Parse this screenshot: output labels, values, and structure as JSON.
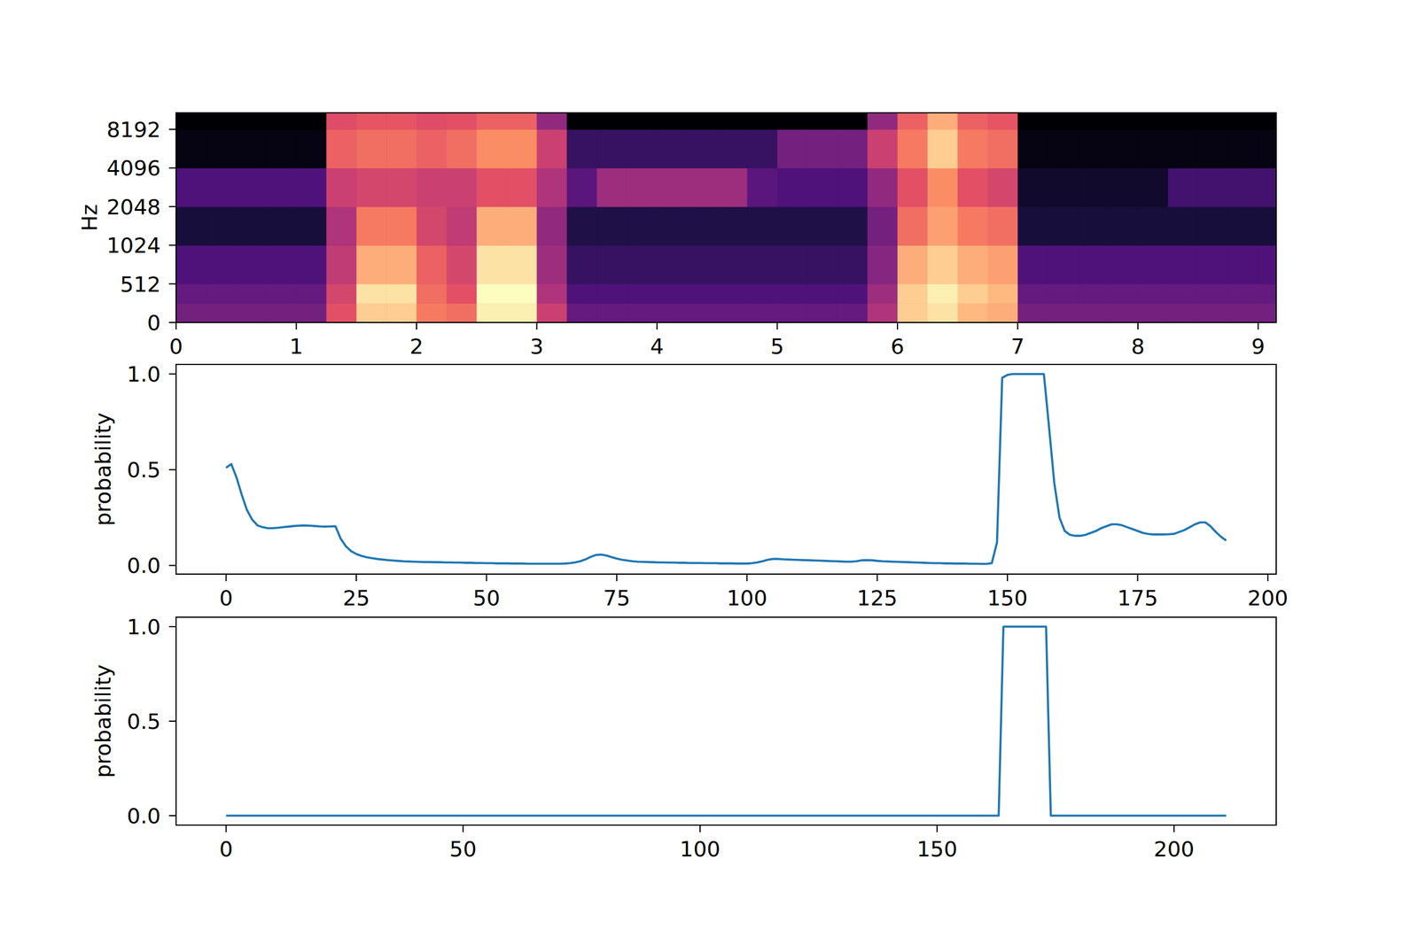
{
  "chart_data": [
    {
      "type": "heatmap",
      "ylabel": "Hz",
      "log": "y",
      "xlim": [
        0,
        9.15
      ],
      "xticks": [
        0,
        1,
        2,
        3,
        4,
        5,
        6,
        7,
        8,
        9
      ],
      "ylim": [
        0,
        11025
      ],
      "yticks": [
        0,
        512,
        1024,
        2048,
        4096,
        8192
      ],
      "time_edges": [
        0,
        0.25,
        0.5,
        0.75,
        1,
        1.25,
        1.5,
        1.75,
        2,
        2.25,
        2.5,
        2.75,
        3,
        3.25,
        3.5,
        3.75,
        4,
        4.25,
        4.5,
        4.75,
        5,
        5.25,
        5.5,
        5.75,
        6,
        6.25,
        6.5,
        6.75,
        7,
        7.25,
        7.5,
        7.75,
        8,
        8.25,
        8.5,
        8.75,
        9,
        9.25
      ],
      "freq_edges": [
        0,
        256,
        512,
        1024,
        2048,
        4096,
        8192,
        11025
      ],
      "cells": [
        [
          -55,
          -55,
          -55,
          -55,
          -55,
          -35,
          -15,
          -15,
          -28,
          -30,
          -10,
          -10,
          -40,
          -58,
          -58,
          -58,
          -58,
          -58,
          -58,
          -58,
          -58,
          -58,
          -58,
          -45,
          -15,
          -12,
          -18,
          -20,
          -55,
          -55,
          -55,
          -55,
          -55,
          -55,
          -55,
          -55,
          -55
        ],
        [
          -58,
          -58,
          -58,
          -58,
          -58,
          -38,
          -12,
          -12,
          -30,
          -35,
          -8,
          -8,
          -45,
          -62,
          -62,
          -62,
          -62,
          -62,
          -62,
          -62,
          -62,
          -62,
          -62,
          -48,
          -15,
          -10,
          -15,
          -18,
          -58,
          -58,
          -58,
          -58,
          -58,
          -58,
          -58,
          -58,
          -58
        ],
        [
          -62,
          -62,
          -62,
          -62,
          -62,
          -42,
          -20,
          -20,
          -32,
          -38,
          -12,
          -12,
          -48,
          -66,
          -66,
          -66,
          -66,
          -66,
          -66,
          -66,
          -66,
          -66,
          -66,
          -52,
          -20,
          -15,
          -20,
          -22,
          -62,
          -62,
          -62,
          -62,
          -62,
          -62,
          -62,
          -62,
          -62
        ],
        [
          -72,
          -72,
          -72,
          -72,
          -72,
          -45,
          -28,
          -28,
          -38,
          -42,
          -20,
          -20,
          -50,
          -70,
          -70,
          -70,
          -70,
          -70,
          -70,
          -70,
          -70,
          -70,
          -70,
          -55,
          -30,
          -22,
          -28,
          -30,
          -72,
          -72,
          -72,
          -72,
          -72,
          -72,
          -72,
          -72,
          -72
        ],
        [
          -62,
          -62,
          -62,
          -62,
          -62,
          -40,
          -38,
          -38,
          -40,
          -40,
          -35,
          -35,
          -45,
          -60,
          -48,
          -48,
          -48,
          -48,
          -48,
          -60,
          -62,
          -62,
          -62,
          -50,
          -35,
          -25,
          -35,
          -38,
          -74,
          -74,
          -74,
          -74,
          -74,
          -64,
          -64,
          -64,
          -64
        ],
        [
          -78,
          -78,
          -78,
          -78,
          -78,
          -32,
          -30,
          -30,
          -32,
          -30,
          -25,
          -25,
          -40,
          -66,
          -66,
          -66,
          -66,
          -66,
          -66,
          -66,
          -55,
          -55,
          -55,
          -40,
          -28,
          -15,
          -28,
          -30,
          -78,
          -78,
          -78,
          -78,
          -78,
          -78,
          -78,
          -78,
          -78
        ],
        [
          -80,
          -80,
          -80,
          -80,
          -80,
          -36,
          -34,
          -34,
          -36,
          -35,
          -32,
          -32,
          -50,
          -80,
          -80,
          -80,
          -80,
          -80,
          -80,
          -80,
          -80,
          -80,
          -80,
          -50,
          -32,
          -20,
          -32,
          -34,
          -80,
          -80,
          -80,
          -80,
          -80,
          -80,
          -80,
          -80,
          -80
        ]
      ]
    },
    {
      "type": "line",
      "ylabel": "probability",
      "color": "#1f77b4",
      "xlim": [
        -9.6,
        201.6
      ],
      "xticks": [
        0,
        25,
        50,
        75,
        100,
        125,
        150,
        175,
        200
      ],
      "ylim": [
        -0.045,
        1.05
      ],
      "yticks": [
        {
          "value": 0,
          "label": "0.0"
        },
        0.5,
        {
          "value": 1,
          "label": "1.0"
        }
      ],
      "x": [
        0,
        1,
        2,
        3,
        4,
        5,
        6,
        7,
        8,
        9,
        10,
        11,
        12,
        13,
        14,
        15,
        16,
        17,
        18,
        19,
        20,
        21,
        22,
        23,
        24,
        25,
        26,
        27,
        28,
        29,
        30,
        31,
        32,
        33,
        34,
        35,
        36,
        37,
        38,
        39,
        40,
        41,
        42,
        43,
        44,
        45,
        46,
        47,
        48,
        49,
        50,
        51,
        52,
        53,
        54,
        55,
        56,
        57,
        58,
        59,
        60,
        61,
        62,
        63,
        64,
        65,
        66,
        67,
        68,
        69,
        70,
        71,
        72,
        73,
        74,
        75,
        76,
        77,
        78,
        79,
        80,
        81,
        82,
        83,
        84,
        85,
        86,
        87,
        88,
        89,
        90,
        91,
        92,
        93,
        94,
        95,
        96,
        97,
        98,
        99,
        100,
        101,
        102,
        103,
        104,
        105,
        106,
        107,
        108,
        109,
        110,
        111,
        112,
        113,
        114,
        115,
        116,
        117,
        118,
        119,
        120,
        121,
        122,
        123,
        124,
        125,
        126,
        127,
        128,
        129,
        130,
        131,
        132,
        133,
        134,
        135,
        136,
        137,
        138,
        139,
        140,
        141,
        142,
        143,
        144,
        145,
        146,
        147,
        148,
        149,
        150,
        151,
        152,
        153,
        154,
        155,
        156,
        157,
        158,
        159,
        160,
        161,
        162,
        163,
        164,
        165,
        166,
        167,
        168,
        169,
        170,
        171,
        172,
        173,
        174,
        175,
        176,
        177,
        178,
        179,
        180,
        181,
        182,
        183,
        184,
        185,
        186,
        187,
        188,
        189,
        190,
        191,
        192
      ],
      "values": [
        0.51,
        0.53,
        0.46,
        0.37,
        0.29,
        0.24,
        0.21,
        0.2,
        0.195,
        0.195,
        0.197,
        0.2,
        0.203,
        0.206,
        0.208,
        0.209,
        0.208,
        0.206,
        0.204,
        0.203,
        0.204,
        0.205,
        0.14,
        0.1,
        0.075,
        0.06,
        0.05,
        0.043,
        0.038,
        0.034,
        0.031,
        0.028,
        0.026,
        0.024,
        0.022,
        0.021,
        0.02,
        0.019,
        0.018,
        0.018,
        0.017,
        0.017,
        0.016,
        0.016,
        0.015,
        0.015,
        0.014,
        0.014,
        0.013,
        0.013,
        0.012,
        0.012,
        0.011,
        0.011,
        0.011,
        0.01,
        0.01,
        0.01,
        0.009,
        0.009,
        0.009,
        0.009,
        0.009,
        0.009,
        0.009,
        0.01,
        0.012,
        0.016,
        0.022,
        0.032,
        0.045,
        0.055,
        0.057,
        0.052,
        0.044,
        0.036,
        0.03,
        0.026,
        0.022,
        0.02,
        0.019,
        0.018,
        0.017,
        0.016,
        0.016,
        0.015,
        0.015,
        0.014,
        0.014,
        0.013,
        0.013,
        0.013,
        0.012,
        0.012,
        0.012,
        0.011,
        0.011,
        0.011,
        0.01,
        0.01,
        0.01,
        0.012,
        0.016,
        0.022,
        0.03,
        0.034,
        0.034,
        0.032,
        0.031,
        0.03,
        0.029,
        0.028,
        0.027,
        0.026,
        0.025,
        0.024,
        0.023,
        0.022,
        0.021,
        0.02,
        0.02,
        0.022,
        0.027,
        0.028,
        0.027,
        0.024,
        0.022,
        0.021,
        0.02,
        0.019,
        0.018,
        0.017,
        0.016,
        0.015,
        0.014,
        0.013,
        0.012,
        0.012,
        0.011,
        0.011,
        0.01,
        0.01,
        0.01,
        0.009,
        0.009,
        0.008,
        0.008,
        0.012,
        0.12,
        0.98,
        0.995,
        1,
        1,
        1,
        1,
        1,
        1,
        1,
        0.72,
        0.43,
        0.25,
        0.18,
        0.16,
        0.155,
        0.155,
        0.16,
        0.17,
        0.18,
        0.195,
        0.205,
        0.215,
        0.215,
        0.21,
        0.2,
        0.19,
        0.18,
        0.17,
        0.165,
        0.162,
        0.162,
        0.162,
        0.163,
        0.165,
        0.175,
        0.185,
        0.2,
        0.215,
        0.225,
        0.225,
        0.205,
        0.175,
        0.15,
        0.13
      ]
    },
    {
      "type": "line",
      "ylabel": "probability",
      "color": "#1f77b4",
      "xlim": [
        -10.55,
        221.55
      ],
      "xticks": [
        0,
        50,
        100,
        150,
        200
      ],
      "ylim": [
        -0.05,
        1.05
      ],
      "yticks": [
        {
          "value": 0,
          "label": "0.0"
        },
        0.5,
        {
          "value": 1,
          "label": "1.0"
        }
      ],
      "x": [
        0,
        1,
        2,
        3,
        4,
        5,
        6,
        7,
        8,
        9,
        10,
        11,
        12,
        13,
        14,
        15,
        16,
        17,
        18,
        19,
        20,
        21,
        22,
        23,
        24,
        25,
        26,
        27,
        28,
        29,
        30,
        31,
        32,
        33,
        34,
        35,
        36,
        37,
        38,
        39,
        40,
        41,
        42,
        43,
        44,
        45,
        46,
        47,
        48,
        49,
        50,
        51,
        52,
        53,
        54,
        55,
        56,
        57,
        58,
        59,
        60,
        61,
        62,
        63,
        64,
        65,
        66,
        67,
        68,
        69,
        70,
        71,
        72,
        73,
        74,
        75,
        76,
        77,
        78,
        79,
        80,
        81,
        82,
        83,
        84,
        85,
        86,
        87,
        88,
        89,
        90,
        91,
        92,
        93,
        94,
        95,
        96,
        97,
        98,
        99,
        100,
        101,
        102,
        103,
        104,
        105,
        106,
        107,
        108,
        109,
        110,
        111,
        112,
        113,
        114,
        115,
        116,
        117,
        118,
        119,
        120,
        121,
        122,
        123,
        124,
        125,
        126,
        127,
        128,
        129,
        130,
        131,
        132,
        133,
        134,
        135,
        136,
        137,
        138,
        139,
        140,
        141,
        142,
        143,
        144,
        145,
        146,
        147,
        148,
        149,
        150,
        151,
        152,
        153,
        154,
        155,
        156,
        157,
        158,
        159,
        160,
        161,
        162,
        163,
        164,
        165,
        166,
        167,
        168,
        169,
        170,
        171,
        172,
        173,
        174,
        175,
        176,
        177,
        178,
        179,
        180,
        181,
        182,
        183,
        184,
        185,
        186,
        187,
        188,
        189,
        190,
        191,
        192,
        193,
        194,
        195,
        196,
        197,
        198,
        199,
        200,
        201,
        202,
        203,
        204,
        205,
        206,
        207,
        208,
        209,
        210,
        211
      ],
      "values": [
        0,
        0,
        0,
        0,
        0,
        0,
        0,
        0,
        0,
        0,
        0,
        0,
        0,
        0,
        0,
        0,
        0,
        0,
        0,
        0,
        0,
        0,
        0,
        0,
        0,
        0,
        0,
        0,
        0,
        0,
        0,
        0,
        0,
        0,
        0,
        0,
        0,
        0,
        0,
        0,
        0,
        0,
        0,
        0,
        0,
        0,
        0,
        0,
        0,
        0,
        0,
        0,
        0,
        0,
        0,
        0,
        0,
        0,
        0,
        0,
        0,
        0,
        0,
        0,
        0,
        0,
        0,
        0,
        0,
        0,
        0,
        0,
        0,
        0,
        0,
        0,
        0,
        0,
        0,
        0,
        0,
        0,
        0,
        0,
        0,
        0,
        0,
        0,
        0,
        0,
        0,
        0,
        0,
        0,
        0,
        0,
        0,
        0,
        0,
        0,
        0,
        0,
        0,
        0,
        0,
        0,
        0,
        0,
        0,
        0,
        0,
        0,
        0,
        0,
        0,
        0,
        0,
        0,
        0,
        0,
        0,
        0,
        0,
        0,
        0,
        0,
        0,
        0,
        0,
        0,
        0,
        0,
        0,
        0,
        0,
        0,
        0,
        0,
        0,
        0,
        0,
        0,
        0,
        0,
        0,
        0,
        0,
        0,
        0,
        0,
        0,
        0,
        0,
        0,
        0,
        0,
        0,
        0,
        0,
        0,
        0,
        0,
        0,
        0,
        1,
        1,
        1,
        1,
        1,
        1,
        1,
        1,
        1,
        1,
        0,
        0,
        0,
        0,
        0,
        0,
        0,
        0,
        0,
        0,
        0,
        0,
        0,
        0,
        0,
        0,
        0,
        0,
        0,
        0,
        0,
        0,
        0,
        0,
        0,
        0,
        0,
        0,
        0,
        0,
        0,
        0,
        0,
        0,
        0,
        0,
        0,
        0
      ]
    }
  ]
}
